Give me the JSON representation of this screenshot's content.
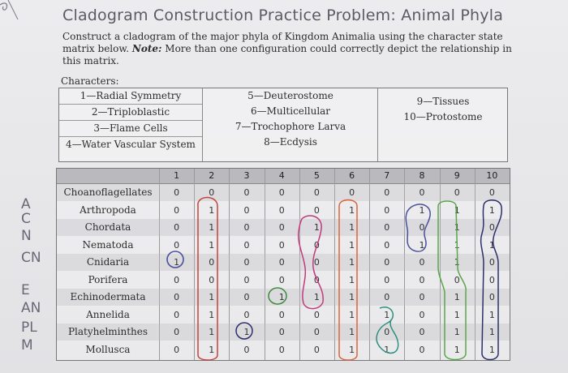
{
  "title": "Cladogram Construction Practice Problem: Animal Phyla",
  "instructions_main": "Construct a cladogram of the major phyla of Kingdom Animalia using the character state matrix below.",
  "instructions_note_label": "Note:",
  "instructions_note": "More than one configuration could correctly depict the relationship in this matrix.",
  "characters_heading": "Characters:",
  "characters": {
    "col1": [
      "1—Radial Symmetry",
      "2—Triploblastic",
      "3—Flame Cells",
      "4—Water Vascular System"
    ],
    "col2": [
      "5—Deuterostome",
      "6—Multicellular",
      "7—Trochophore Larva",
      "8—Ecdysis"
    ],
    "col3": [
      "9—Tissues",
      "10—Protostome"
    ]
  },
  "matrix": {
    "column_headers": [
      "1",
      "2",
      "3",
      "4",
      "5",
      "6",
      "7",
      "8",
      "9",
      "10"
    ],
    "rows": [
      {
        "taxon": "Choanoflagellates",
        "values": [
          "0",
          "0",
          "0",
          "0",
          "0",
          "0",
          "0",
          "0",
          "0",
          "0"
        ]
      },
      {
        "taxon": "Arthropoda",
        "values": [
          "0",
          "1",
          "0",
          "0",
          "0",
          "1",
          "0",
          "1",
          "1",
          "1"
        ]
      },
      {
        "taxon": "Chordata",
        "values": [
          "0",
          "1",
          "0",
          "0",
          "1",
          "1",
          "0",
          "0",
          "1",
          "0"
        ]
      },
      {
        "taxon": "Nematoda",
        "values": [
          "0",
          "1",
          "0",
          "0",
          "0",
          "1",
          "0",
          "1",
          "1",
          "1"
        ]
      },
      {
        "taxon": "Cnidaria",
        "values": [
          "1",
          "0",
          "0",
          "0",
          "0",
          "1",
          "0",
          "0",
          "1",
          "0"
        ]
      },
      {
        "taxon": "Porifera",
        "values": [
          "0",
          "0",
          "0",
          "0",
          "0",
          "1",
          "0",
          "0",
          "0",
          "0"
        ]
      },
      {
        "taxon": "Echinodermata",
        "values": [
          "0",
          "1",
          "0",
          "1",
          "1",
          "1",
          "0",
          "0",
          "1",
          "0"
        ]
      },
      {
        "taxon": "Annelida",
        "values": [
          "0",
          "1",
          "0",
          "0",
          "0",
          "1",
          "1",
          "0",
          "1",
          "1"
        ]
      },
      {
        "taxon": "Platyhelminthes",
        "values": [
          "0",
          "1",
          "1",
          "0",
          "0",
          "1",
          "0",
          "0",
          "1",
          "1"
        ]
      },
      {
        "taxon": "Mollusca",
        "values": [
          "0",
          "1",
          "0",
          "0",
          "0",
          "1",
          "1",
          "0",
          "1",
          "1"
        ]
      }
    ]
  },
  "margin_notes": [
    "A",
    "C",
    "N",
    "CN",
    "E",
    "AN",
    "PL",
    "M"
  ],
  "ink_colors": {
    "purple": "#4a4f9a",
    "red": "#c4433d",
    "orange": "#d9653a",
    "pink": "#c23a7e",
    "green": "#5aa64a",
    "teal": "#2f8f80",
    "navy": "#2d2f6a",
    "margin_pencil": "#6a6878"
  }
}
